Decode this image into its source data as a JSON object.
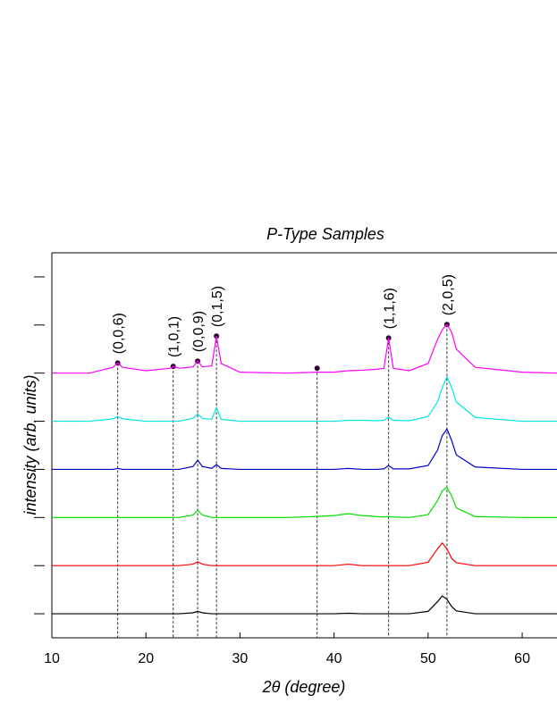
{
  "chart_data": {
    "type": "line",
    "title": "P-Type Samples",
    "x_label": "2θ (degree)",
    "y_label": "intensity (arb. units)",
    "x": [
      10,
      14,
      16.5,
      17,
      17.5,
      20,
      22.5,
      23,
      23.5,
      25,
      25.5,
      26,
      27,
      27.5,
      28,
      30,
      35,
      38,
      40,
      41.5,
      43,
      44.5,
      45.3,
      45.8,
      46.3,
      48,
      50,
      51,
      51.5,
      52,
      52.5,
      53,
      55,
      60,
      63.7
    ],
    "series": [
      {
        "color": "#000000",
        "values": [
          0.5,
          0.5,
          0.5,
          0.5,
          0.5,
          0.5,
          0.5,
          0.5,
          0.5,
          0.52,
          0.55,
          0.52,
          0.5,
          0.5,
          0.5,
          0.5,
          0.5,
          0.5,
          0.5,
          0.51,
          0.5,
          0.5,
          0.5,
          0.5,
          0.5,
          0.5,
          0.55,
          0.75,
          0.87,
          0.8,
          0.65,
          0.56,
          0.5,
          0.5,
          0.5
        ]
      },
      {
        "color": "#ff0000",
        "values": [
          1.5,
          1.5,
          1.5,
          1.5,
          1.5,
          1.5,
          1.5,
          1.5,
          1.5,
          1.53,
          1.58,
          1.53,
          1.5,
          1.5,
          1.5,
          1.5,
          1.5,
          1.5,
          1.5,
          1.53,
          1.5,
          1.5,
          1.5,
          1.5,
          1.5,
          1.5,
          1.57,
          1.85,
          1.97,
          1.85,
          1.65,
          1.56,
          1.5,
          1.5,
          1.5
        ]
      },
      {
        "color": "#00dd00",
        "values": [
          2.5,
          2.5,
          2.5,
          2.5,
          2.5,
          2.5,
          2.5,
          2.5,
          2.5,
          2.55,
          2.65,
          2.55,
          2.5,
          2.5,
          2.5,
          2.5,
          2.5,
          2.52,
          2.54,
          2.58,
          2.54,
          2.52,
          2.51,
          2.52,
          2.51,
          2.5,
          2.56,
          2.85,
          3.05,
          3.13,
          2.95,
          2.7,
          2.52,
          2.5,
          2.5
        ]
      },
      {
        "color": "#0000cc",
        "values": [
          3.5,
          3.5,
          3.5,
          3.52,
          3.5,
          3.5,
          3.5,
          3.5,
          3.5,
          3.56,
          3.69,
          3.56,
          3.52,
          3.6,
          3.52,
          3.5,
          3.5,
          3.5,
          3.5,
          3.52,
          3.5,
          3.5,
          3.51,
          3.58,
          3.51,
          3.51,
          3.58,
          3.9,
          4.2,
          4.34,
          4.1,
          3.8,
          3.55,
          3.5,
          3.5
        ]
      },
      {
        "color": "#00e5e5",
        "values": [
          4.5,
          4.5,
          4.55,
          4.6,
          4.55,
          4.5,
          4.5,
          4.5,
          4.5,
          4.56,
          4.65,
          4.56,
          4.54,
          4.78,
          4.54,
          4.5,
          4.5,
          4.5,
          4.5,
          4.52,
          4.52,
          4.51,
          4.52,
          4.58,
          4.52,
          4.51,
          4.6,
          4.9,
          5.2,
          5.42,
          5.2,
          4.9,
          4.58,
          4.5,
          4.5
        ]
      },
      {
        "color": "#ff00ff",
        "values": [
          5.5,
          5.5,
          5.62,
          5.71,
          5.62,
          5.55,
          5.6,
          5.64,
          5.6,
          5.63,
          5.75,
          5.63,
          5.65,
          6.27,
          5.7,
          5.52,
          5.5,
          5.52,
          5.52,
          5.55,
          5.56,
          5.58,
          5.6,
          6.23,
          5.6,
          5.55,
          5.7,
          6.2,
          6.4,
          6.51,
          6.35,
          6.0,
          5.62,
          5.52,
          5.5
        ]
      }
    ],
    "peaks": [
      {
        "x": 17,
        "y": 5.71,
        "label": "(0,0,6)"
      },
      {
        "x": 22.9,
        "y": 5.64,
        "label": "(1,0,1)"
      },
      {
        "x": 25.5,
        "y": 5.75,
        "label": "(0,0,9)"
      },
      {
        "x": 27.5,
        "y": 6.27,
        "label": "(0,1,5)"
      },
      {
        "x": 38.2,
        "y": 5.6
      },
      {
        "x": 45.8,
        "y": 6.23,
        "label": "(1,1,6)"
      },
      {
        "x": 52,
        "y": 6.51,
        "label": "(2,0,5)"
      }
    ],
    "xlim": [
      10,
      63.7
    ],
    "xticks": [
      10,
      20,
      30,
      40,
      50,
      60
    ],
    "ylim": [
      0,
      8
    ],
    "yticks": [
      0.5,
      1.5,
      2.5,
      3.5,
      4.5,
      5.5,
      6.5,
      7.5
    ]
  }
}
